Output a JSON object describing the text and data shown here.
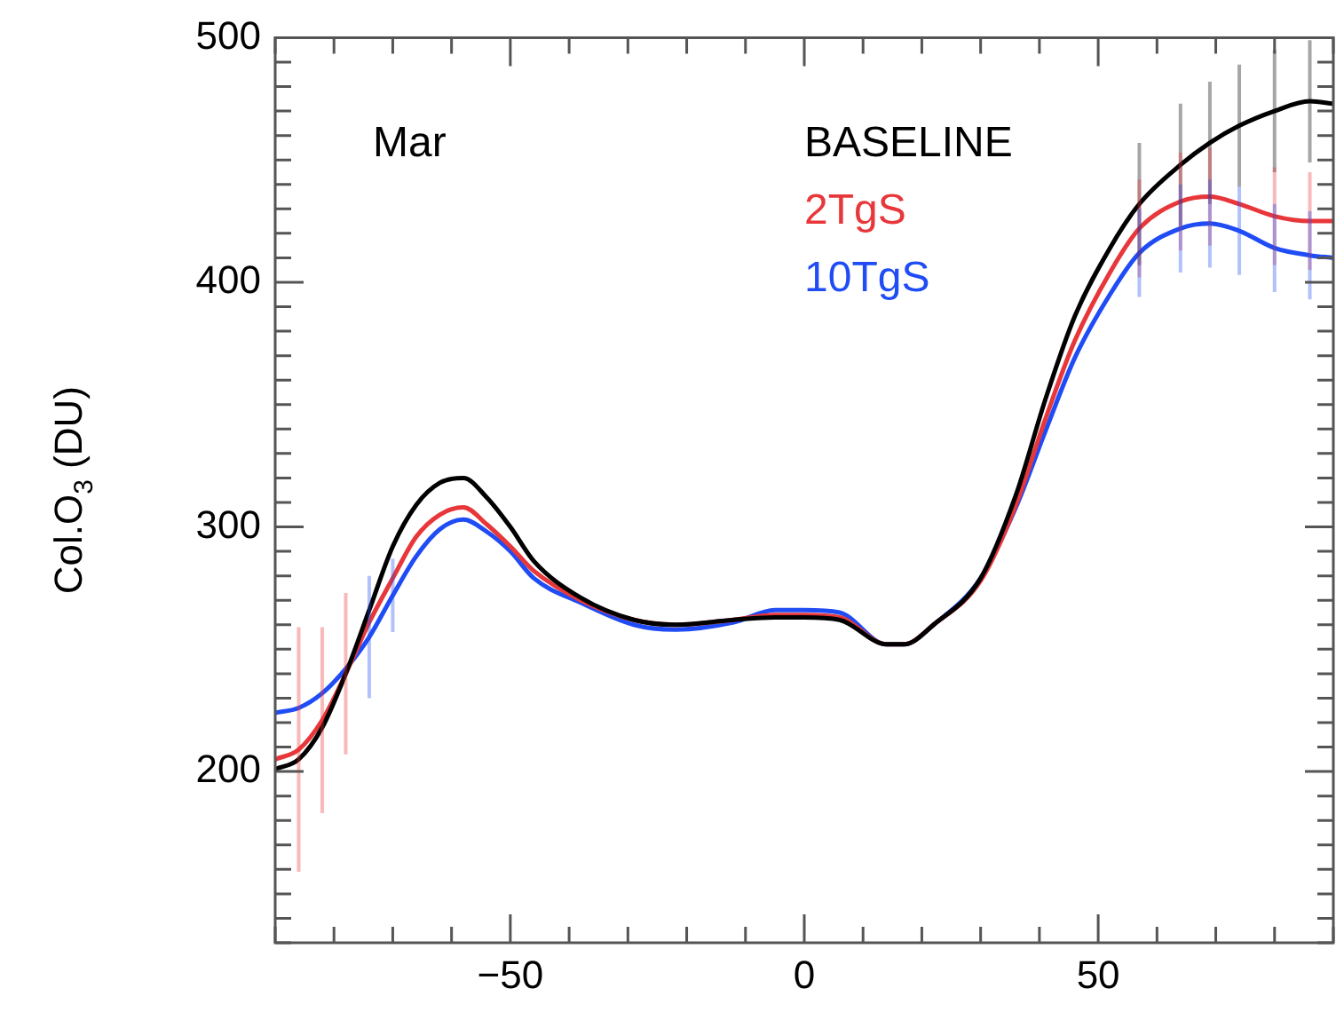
{
  "chart_data": {
    "type": "line",
    "ylabel": "Col.O$_{3}$ (DU)",
    "annotations": [
      "Mar"
    ],
    "legend": "top",
    "marker": "none",
    "line_style": "solid",
    "grid": false,
    "x": [
      -90,
      -86,
      -82,
      -78,
      -74,
      -70,
      -66,
      -62,
      -58,
      -54,
      -50,
      -46,
      -38,
      -29,
      -22,
      -12,
      -5,
      0,
      6,
      14,
      17,
      22,
      30,
      36,
      41,
      46,
      52,
      57,
      64,
      69,
      74,
      80,
      86,
      90
    ],
    "series": [
      {
        "name": "BASELINE",
        "color": "#000000",
        "values": [
          201,
          205,
          218,
          240,
          266,
          292,
          309,
          318,
          320,
          312,
          300,
          286,
          271,
          262,
          260,
          262,
          263,
          263,
          262,
          252,
          252,
          260,
          279,
          313,
          352,
          386,
          414,
          432,
          448,
          457,
          464,
          470,
          474,
          473
        ],
        "errors": [
          null,
          null,
          null,
          null,
          null,
          null,
          null,
          null,
          null,
          null,
          null,
          null,
          null,
          null,
          null,
          null,
          null,
          null,
          null,
          null,
          null,
          null,
          null,
          null,
          null,
          null,
          null,
          25,
          25,
          25,
          25,
          25,
          25,
          null
        ]
      },
      {
        "name": "2TgS",
        "color": "#e8373a",
        "values": [
          205,
          209,
          221,
          240,
          261,
          279,
          296,
          305,
          308,
          301,
          292,
          282,
          270,
          262,
          260,
          262,
          264,
          264,
          263,
          252,
          252,
          260,
          278,
          309,
          344,
          376,
          404,
          422,
          433,
          435,
          432,
          427,
          425,
          425
        ],
        "errors": [
          null,
          50,
          38,
          33,
          null,
          null,
          null,
          null,
          null,
          null,
          null,
          null,
          null,
          null,
          null,
          null,
          null,
          null,
          null,
          null,
          null,
          null,
          null,
          null,
          null,
          null,
          null,
          20,
          20,
          20,
          null,
          20,
          20,
          null
        ]
      },
      {
        "name": "10TgS",
        "color": "#1f4cf5",
        "values": [
          224,
          226,
          232,
          242,
          255,
          272,
          288,
          299,
          303,
          298,
          290,
          279,
          269,
          260,
          258,
          261,
          266,
          266,
          265,
          252,
          252,
          260,
          279,
          308,
          339,
          369,
          395,
          412,
          422,
          424,
          421,
          414,
          411,
          410
        ],
        "errors": [
          null,
          null,
          null,
          null,
          25,
          15,
          null,
          null,
          null,
          null,
          null,
          null,
          null,
          null,
          null,
          null,
          null,
          null,
          null,
          null,
          null,
          null,
          null,
          null,
          null,
          null,
          null,
          18,
          18,
          18,
          18,
          18,
          18,
          null
        ]
      }
    ],
    "xlim": [
      -90,
      90
    ],
    "xticks": [
      {
        "value": -90,
        "label": null
      },
      {
        "value": -80,
        "label": null
      },
      {
        "value": -70,
        "label": null
      },
      {
        "value": -60,
        "label": null
      },
      {
        "value": -50,
        "label": "−50"
      },
      {
        "value": -40,
        "label": null
      },
      {
        "value": -30,
        "label": null
      },
      {
        "value": -20,
        "label": null
      },
      {
        "value": -10,
        "label": null
      },
      0,
      {
        "value": 10,
        "label": null
      },
      {
        "value": 20,
        "label": null
      },
      {
        "value": 30,
        "label": null
      },
      {
        "value": 40,
        "label": null
      },
      50,
      {
        "value": 60,
        "label": null
      },
      {
        "value": 70,
        "label": null
      },
      {
        "value": 80,
        "label": null
      },
      {
        "value": 90,
        "label": null
      }
    ],
    "ylim": [
      130,
      500
    ],
    "yticks": [
      {
        "value": 130,
        "label": null
      },
      {
        "value": 140,
        "label": null
      },
      {
        "value": 150,
        "label": null
      },
      {
        "value": 160,
        "label": null
      },
      {
        "value": 170,
        "label": null
      },
      {
        "value": 180,
        "label": null
      },
      {
        "value": 190,
        "label": null
      },
      200,
      {
        "value": 210,
        "label": null
      },
      {
        "value": 220,
        "label": null
      },
      {
        "value": 230,
        "label": null
      },
      {
        "value": 240,
        "label": null
      },
      {
        "value": 250,
        "label": null
      },
      {
        "value": 260,
        "label": null
      },
      {
        "value": 270,
        "label": null
      },
      {
        "value": 280,
        "label": null
      },
      {
        "value": 290,
        "label": null
      },
      300,
      {
        "value": 310,
        "label": null
      },
      {
        "value": 320,
        "label": null
      },
      {
        "value": 330,
        "label": null
      },
      {
        "value": 340,
        "label": null
      },
      {
        "value": 350,
        "label": null
      },
      {
        "value": 360,
        "label": null
      },
      {
        "value": 370,
        "label": null
      },
      {
        "value": 380,
        "label": null
      },
      {
        "value": 390,
        "label": null
      },
      400,
      {
        "value": 410,
        "label": null
      },
      {
        "value": 420,
        "label": null
      },
      {
        "value": 430,
        "label": null
      },
      {
        "value": 440,
        "label": null
      },
      {
        "value": 450,
        "label": null
      },
      {
        "value": 460,
        "label": null
      },
      {
        "value": 470,
        "label": null
      },
      {
        "value": 480,
        "label": null
      },
      {
        "value": 490,
        "label": null
      },
      500
    ]
  }
}
